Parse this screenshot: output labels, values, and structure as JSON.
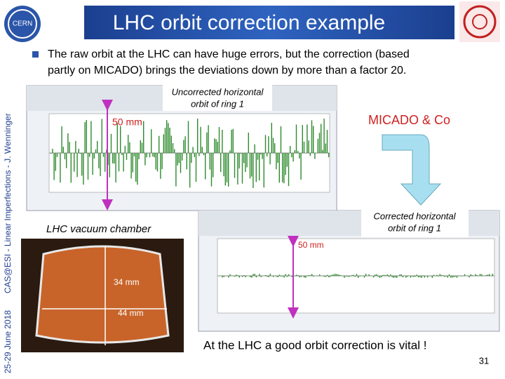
{
  "header": {
    "title": "LHC orbit correction example"
  },
  "sidebar": {
    "date": "25-29 June 2018",
    "event": "CAS@ESI - Linear Imperfections - J. Wenninger"
  },
  "bullet": {
    "lines": [
      "The raw orbit at the LHC can have huge errors, but the correction (based",
      "partly on MICADO) brings the deviations down by more than a factor 20."
    ]
  },
  "uncorrected": {
    "callout": [
      "Uncorrected horizontal",
      "orbit of ring 1"
    ],
    "scale": "50 mm"
  },
  "micado": "MICADO & Co",
  "corrected": {
    "callout": [
      "Corrected horizontal",
      "orbit of ring 1"
    ],
    "scale": "50 mm"
  },
  "chamber": {
    "label": "LHC vacuum chamber",
    "height": "34 mm",
    "width": "44 mm"
  },
  "conclusion": "At the LHC a good orbit correction is vital !",
  "page_number": "31"
}
